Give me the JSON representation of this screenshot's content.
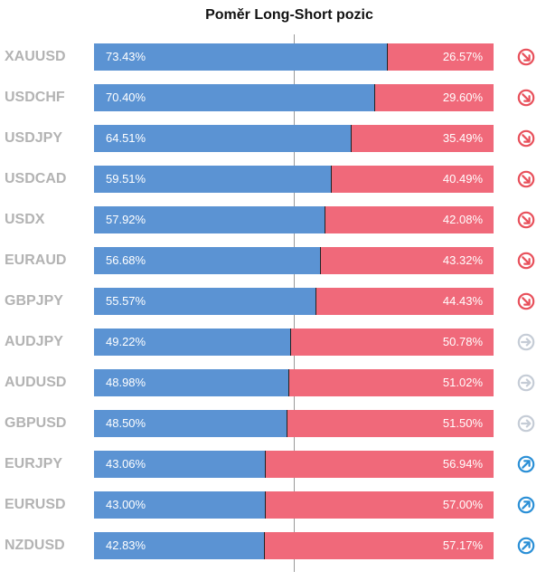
{
  "chart_data": {
    "type": "bar",
    "title": "Poměr Long-Short pozic",
    "colors": {
      "long": "#5b93d3",
      "short": "#f0697a",
      "signal_down": "#e8505b",
      "signal_neutral": "#c5ccd6",
      "signal_up": "#2a8fd6"
    },
    "rows": [
      {
        "pair": "XAUUSD",
        "long": 73.43,
        "short": 26.57,
        "long_label": "73.43%",
        "short_label": "26.57%",
        "signal": "down-right-arrow-icon"
      },
      {
        "pair": "USDCHF",
        "long": 70.4,
        "short": 29.6,
        "long_label": "70.40%",
        "short_label": "29.60%",
        "signal": "down-right-arrow-icon"
      },
      {
        "pair": "USDJPY",
        "long": 64.51,
        "short": 35.49,
        "long_label": "64.51%",
        "short_label": "35.49%",
        "signal": "down-right-arrow-icon"
      },
      {
        "pair": "USDCAD",
        "long": 59.51,
        "short": 40.49,
        "long_label": "59.51%",
        "short_label": "40.49%",
        "signal": "down-right-arrow-icon"
      },
      {
        "pair": "USDX",
        "long": 57.92,
        "short": 42.08,
        "long_label": "57.92%",
        "short_label": "42.08%",
        "signal": "down-right-arrow-icon"
      },
      {
        "pair": "EURAUD",
        "long": 56.68,
        "short": 43.32,
        "long_label": "56.68%",
        "short_label": "43.32%",
        "signal": "down-right-arrow-icon"
      },
      {
        "pair": "GBPJPY",
        "long": 55.57,
        "short": 44.43,
        "long_label": "55.57%",
        "short_label": "44.43%",
        "signal": "down-right-arrow-icon"
      },
      {
        "pair": "AUDJPY",
        "long": 49.22,
        "short": 50.78,
        "long_label": "49.22%",
        "short_label": "50.78%",
        "signal": "right-arrow-icon"
      },
      {
        "pair": "AUDUSD",
        "long": 48.98,
        "short": 51.02,
        "long_label": "48.98%",
        "short_label": "51.02%",
        "signal": "right-arrow-icon"
      },
      {
        "pair": "GBPUSD",
        "long": 48.5,
        "short": 51.5,
        "long_label": "48.50%",
        "short_label": "51.50%",
        "signal": "right-arrow-icon"
      },
      {
        "pair": "EURJPY",
        "long": 43.06,
        "short": 56.94,
        "long_label": "43.06%",
        "short_label": "56.94%",
        "signal": "up-right-arrow-icon"
      },
      {
        "pair": "EURUSD",
        "long": 43.0,
        "short": 57.0,
        "long_label": "43.00%",
        "short_label": "57.00%",
        "signal": "up-right-arrow-icon"
      },
      {
        "pair": "NZDUSD",
        "long": 42.83,
        "short": 57.17,
        "long_label": "42.83%",
        "short_label": "57.17%",
        "signal": "up-right-arrow-icon"
      }
    ]
  }
}
